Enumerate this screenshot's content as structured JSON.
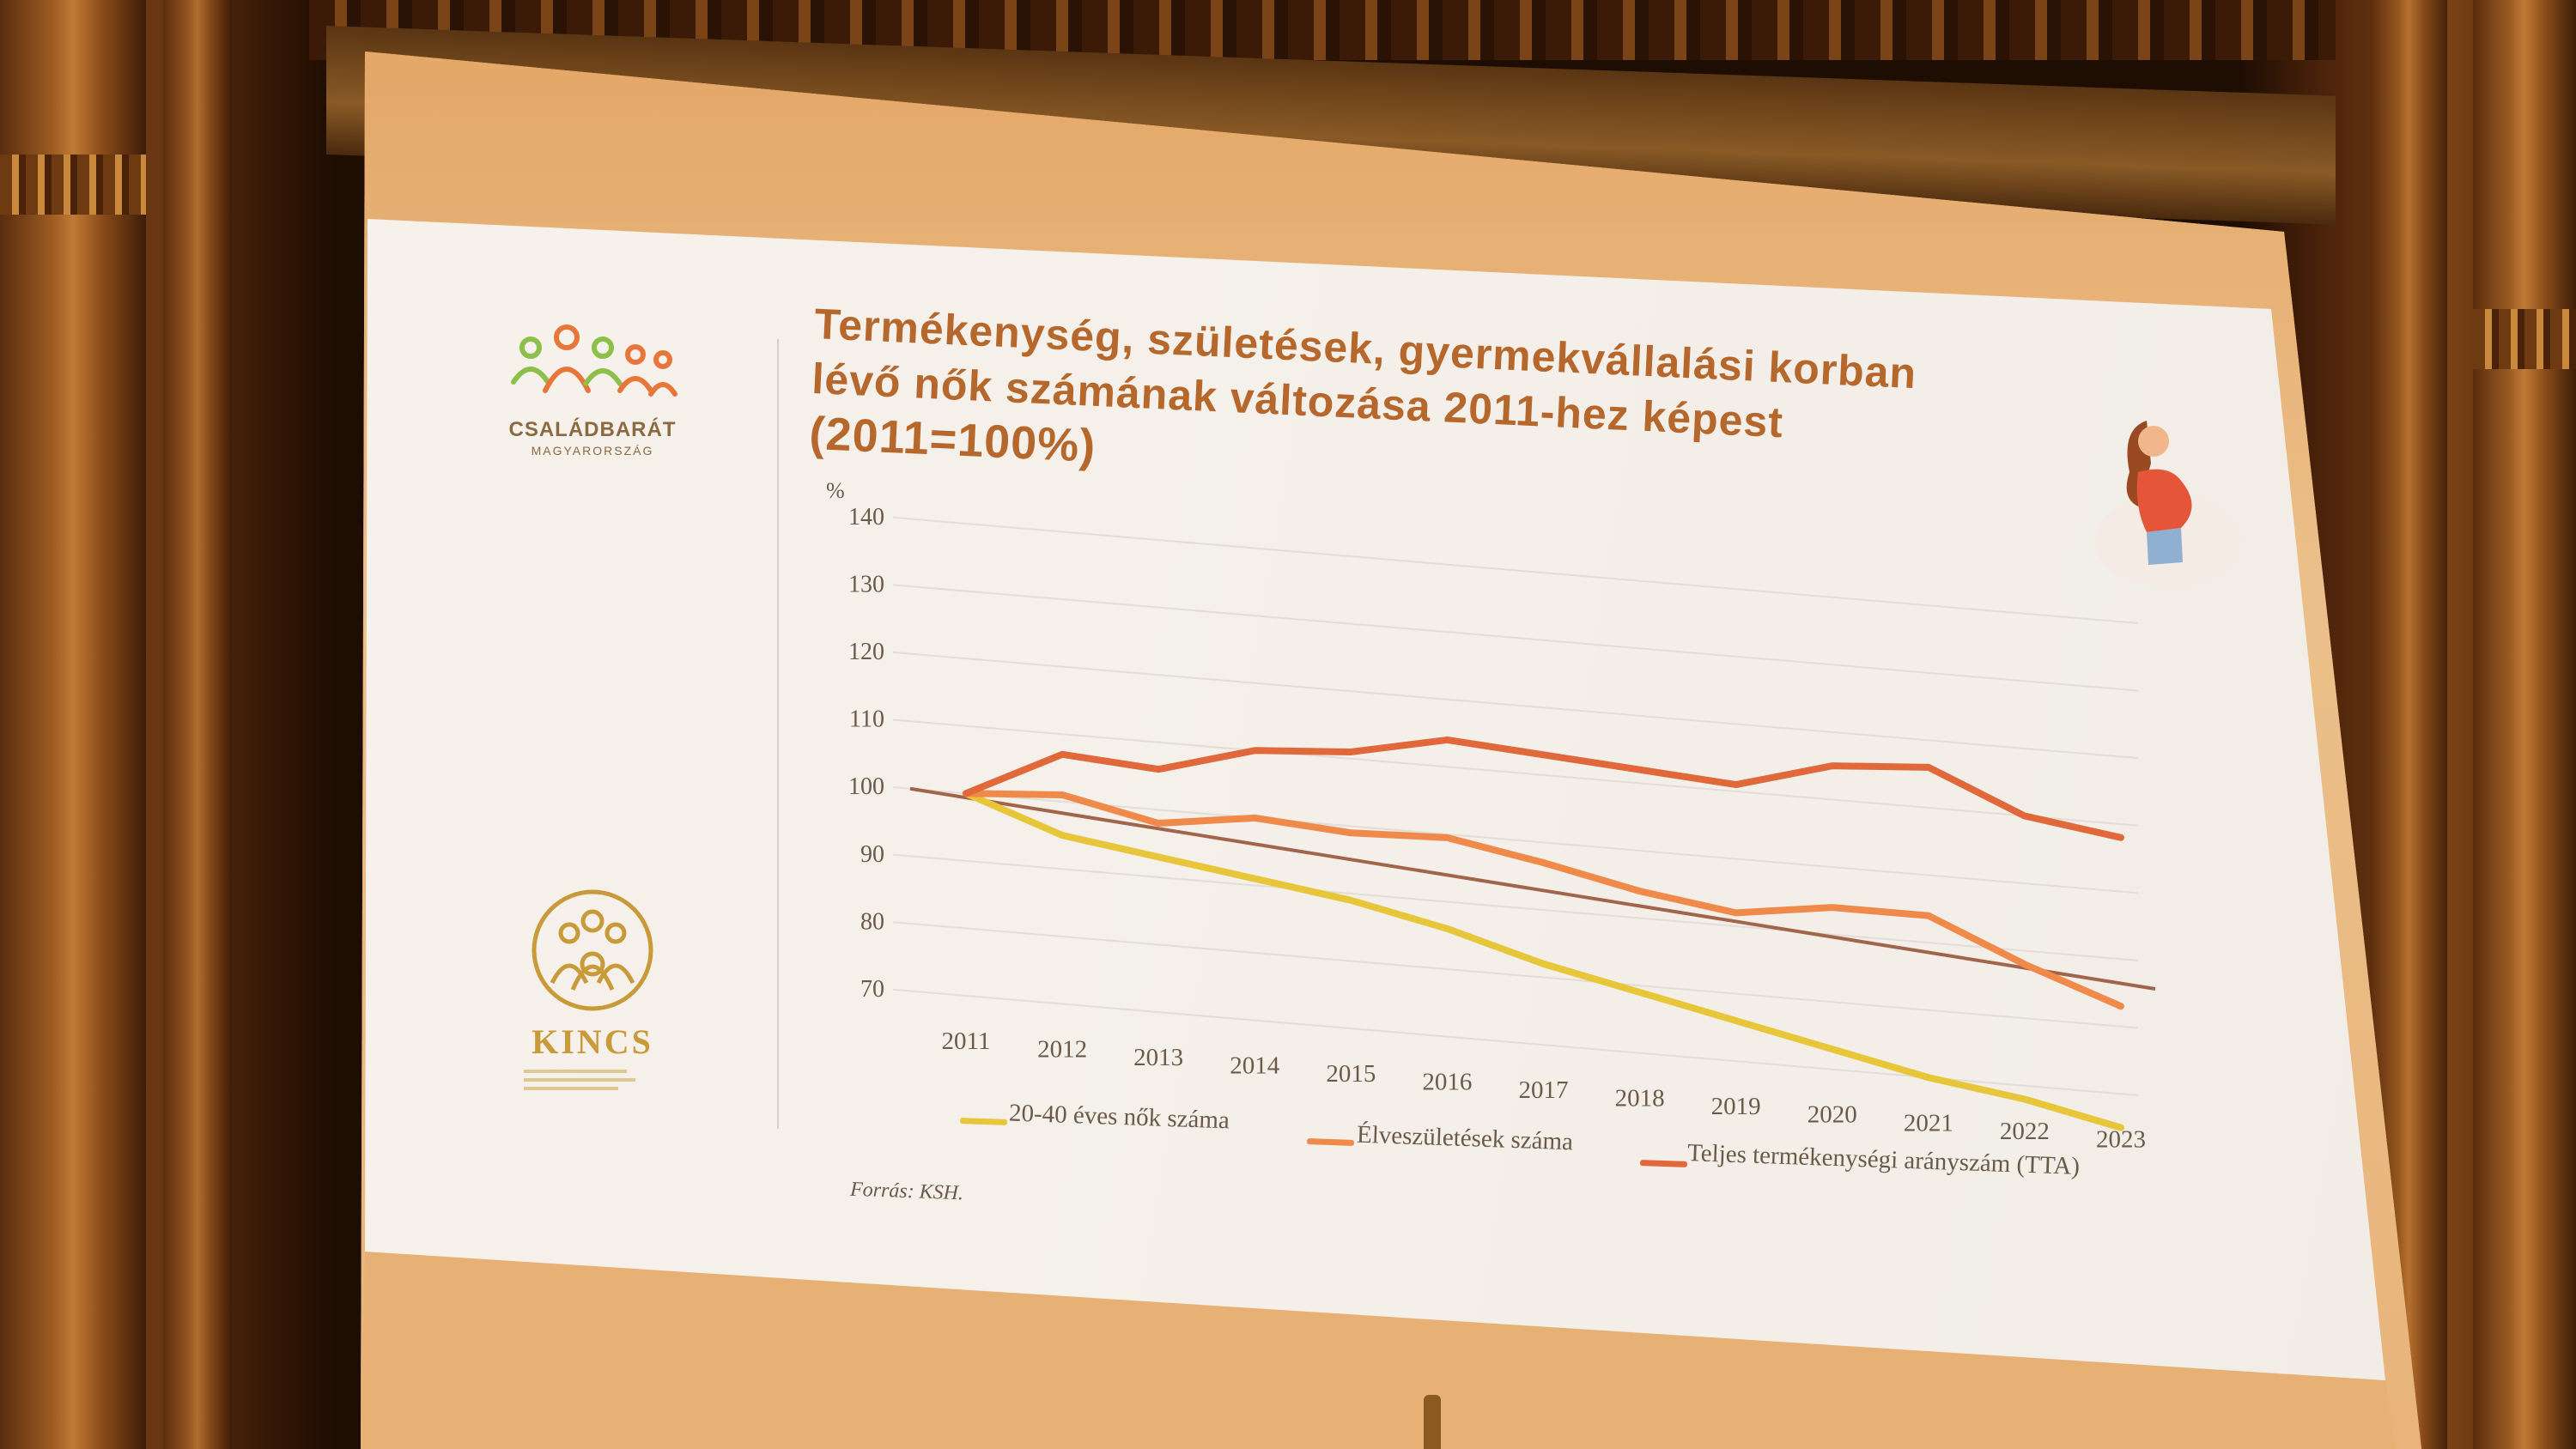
{
  "slide": {
    "title_lines": [
      "Termékenység, születések, gyermekvállalási korban",
      "lévő nők számának változása 2011-hez képest",
      "(2011=100%)"
    ],
    "source": "Forrás: KSH."
  },
  "logos": {
    "top": {
      "name": "CSALÁDBARÁT",
      "sub": "MAGYARORSZÁG"
    },
    "bottom": {
      "name": "KINCS"
    }
  },
  "chart_data": {
    "type": "line",
    "ylabel": "%",
    "ylim": [
      70,
      140
    ],
    "y_ticks": [
      140,
      130,
      120,
      110,
      100,
      90,
      80,
      70
    ],
    "grid": true,
    "legend_position": "bottom",
    "categories": [
      "2011",
      "2012",
      "2013",
      "2014",
      "2015",
      "2016",
      "2017",
      "2018",
      "2019",
      "2020",
      "2021",
      "2022",
      "2023"
    ],
    "series": [
      {
        "name": "20-40 éves nők száma",
        "color": "#e8c63a",
        "values": [
          100,
          95,
          93,
          91,
          89,
          86,
          82,
          79,
          76,
          73,
          70,
          68,
          65
        ]
      },
      {
        "name": "Élveszületések száma",
        "color": "#f08a4a",
        "values": [
          100,
          101,
          98,
          100,
          99,
          99.5,
          97,
          94,
          92,
          94,
          94,
          88,
          83
        ]
      },
      {
        "name": "Teljes termékenységi arányszám (TTA)",
        "color": "#e0683a",
        "values": [
          100,
          107,
          106,
          110,
          111,
          114,
          113,
          112,
          111,
          115,
          116,
          110,
          108
        ]
      }
    ],
    "trendline": {
      "color": "#a0654a",
      "from": 100,
      "to": 86
    }
  },
  "colors": {
    "title": "#b5672c",
    "screen_frame": "#e9b57a"
  }
}
